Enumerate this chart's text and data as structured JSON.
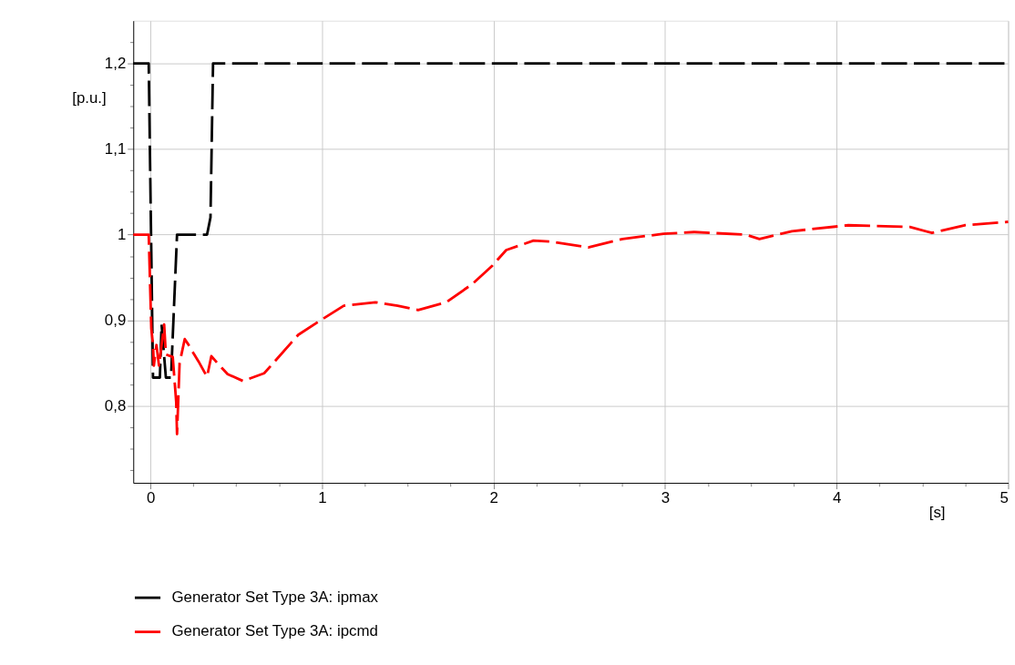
{
  "chart_data": {
    "type": "line",
    "xlabel": "[s]",
    "ylabel": "[p.u.]",
    "xlim": [
      -0.1,
      5
    ],
    "ylim": [
      0.71,
      1.25
    ],
    "xticks": [
      0,
      {
        "value": 0.25,
        "label": null
      },
      {
        "value": 0.5,
        "label": null
      },
      {
        "value": 0.75,
        "label": null
      },
      1,
      {
        "value": 1.25,
        "label": null
      },
      {
        "value": 1.5,
        "label": null
      },
      {
        "value": 1.75,
        "label": null
      },
      2,
      {
        "value": 2.25,
        "label": null
      },
      {
        "value": 2.5,
        "label": null
      },
      {
        "value": 2.75,
        "label": null
      },
      3,
      {
        "value": 3.25,
        "label": null
      },
      {
        "value": 3.5,
        "label": null
      },
      {
        "value": 3.75,
        "label": null
      },
      4,
      {
        "value": 4.25,
        "label": null
      },
      {
        "value": 4.5,
        "label": null
      },
      {
        "value": 4.75,
        "label": null
      },
      5
    ],
    "yticks": [
      {
        "value": 0.725,
        "label": null
      },
      {
        "value": 0.75,
        "label": null
      },
      {
        "value": 0.775,
        "label": null
      },
      {
        "value": 0.8,
        "label": "0,8"
      },
      {
        "value": 0.825,
        "label": null
      },
      {
        "value": 0.85,
        "label": null
      },
      {
        "value": 0.875,
        "label": null
      },
      {
        "value": 0.9,
        "label": "0,9"
      },
      {
        "value": 0.925,
        "label": null
      },
      {
        "value": 0.95,
        "label": null
      },
      {
        "value": 0.975,
        "label": null
      },
      1,
      {
        "value": 1.025,
        "label": null
      },
      {
        "value": 1.05,
        "label": null
      },
      {
        "value": 1.075,
        "label": null
      },
      {
        "value": 1.1,
        "label": "1,1"
      },
      {
        "value": 1.125,
        "label": null
      },
      {
        "value": 1.15,
        "label": null
      },
      {
        "value": 1.175,
        "label": null
      },
      {
        "value": 1.2,
        "label": "1,2"
      },
      {
        "value": 1.225,
        "label": null
      }
    ],
    "grid": true,
    "legend": "bottom",
    "line_style": "dashed",
    "marker": "none",
    "series": [
      {
        "name": "Generator Set Type 3A: ipmax",
        "color": "#000000",
        "x": [
          -0.1,
          -0.01,
          0.015,
          0.055,
          0.065,
          0.09,
          0.12,
          0.155,
          0.33,
          0.35,
          0.365,
          5
        ],
        "values": [
          1.2,
          1.2,
          0.833,
          0.833,
          0.895,
          0.833,
          0.833,
          1.0,
          1.0,
          1.02,
          1.2,
          1.2
        ]
      },
      {
        "name": "Generator Set Type 3A: ipcmd",
        "color": "#ff0000",
        "x": [
          -0.1,
          -0.01,
          0.005,
          0.015,
          0.02,
          0.035,
          0.05,
          0.08,
          0.09,
          0.13,
          0.15,
          0.155,
          0.17,
          0.2,
          0.22,
          0.255,
          0.28,
          0.33,
          0.355,
          0.39,
          0.45,
          0.54,
          0.663,
          0.862,
          1.0,
          1.127,
          1.311,
          1.441,
          1.56,
          1.725,
          1.874,
          1.994,
          2.074,
          2.233,
          2.333,
          2.552,
          2.752,
          2.991,
          3.17,
          3.47,
          3.55,
          3.739,
          4.068,
          4.427,
          4.556,
          4.746,
          5.0
        ],
        "values": [
          1.0,
          1.0,
          0.89,
          0.872,
          0.847,
          0.871,
          0.847,
          0.895,
          0.86,
          0.857,
          0.805,
          0.767,
          0.85,
          0.878,
          0.872,
          0.86,
          0.852,
          0.834,
          0.858,
          0.85,
          0.837,
          0.829,
          0.838,
          0.883,
          0.901,
          0.917,
          0.921,
          0.917,
          0.912,
          0.921,
          0.942,
          0.964,
          0.982,
          0.993,
          0.992,
          0.985,
          0.995,
          1.001,
          1.003,
          1.0,
          0.995,
          1.004,
          1.011,
          1.009,
          1.002,
          1.011,
          1.015
        ]
      }
    ]
  }
}
